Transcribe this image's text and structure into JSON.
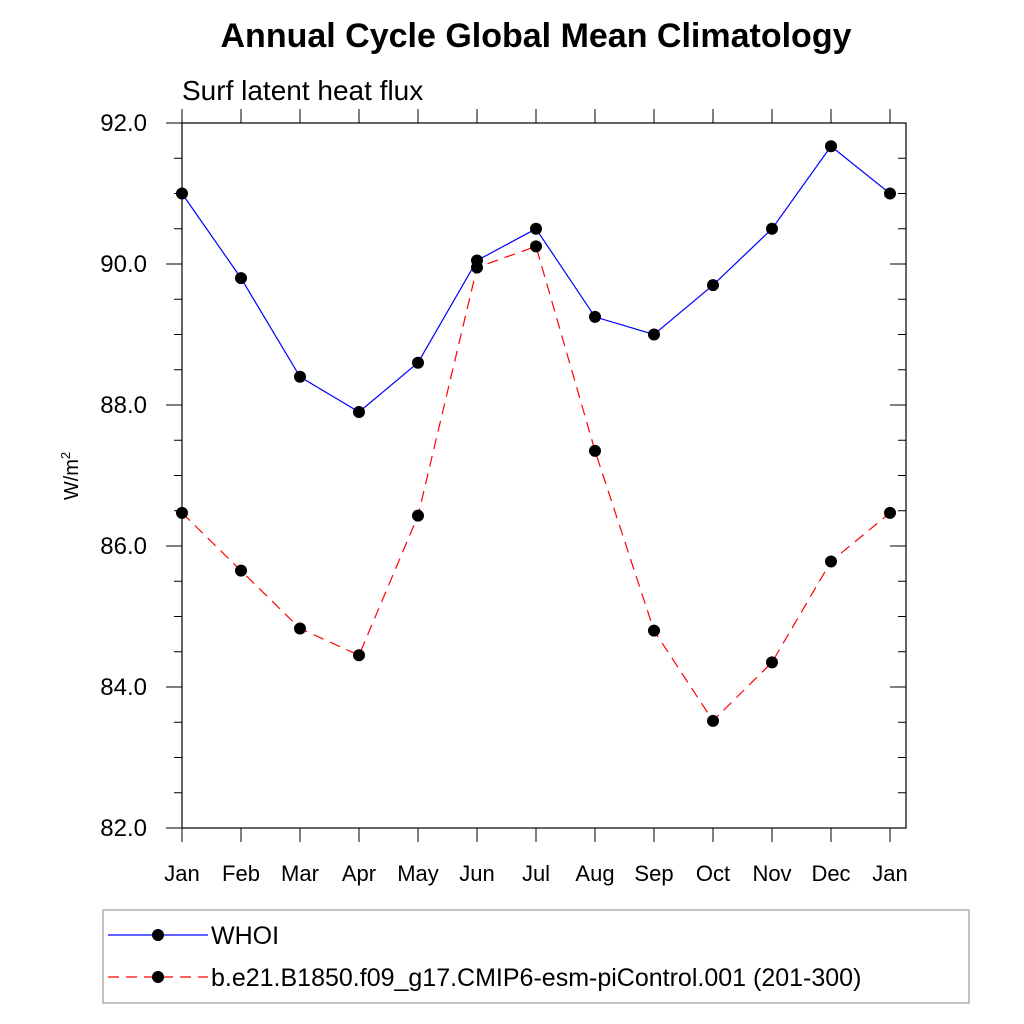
{
  "chart_data": {
    "type": "line",
    "title": "Annual Cycle Global Mean Climatology",
    "subtitle": "Surf latent heat flux",
    "xlabel": "",
    "ylabel_base": "W/m",
    "ylabel_sup": "2",
    "categories": [
      "Jan",
      "Feb",
      "Mar",
      "Apr",
      "May",
      "Jun",
      "Jul",
      "Aug",
      "Sep",
      "Oct",
      "Nov",
      "Dec",
      "Jan"
    ],
    "ylim": [
      82.0,
      92.0
    ],
    "yticks": [
      "82.0",
      "84.0",
      "86.0",
      "88.0",
      "90.0",
      "92.0"
    ],
    "grid": false,
    "legend_position": "bottom",
    "series": [
      {
        "name": "WHOI",
        "color": "#0000ff",
        "line_style": "solid",
        "marker": "filled-circle",
        "values": [
          91.0,
          89.8,
          88.4,
          87.9,
          88.6,
          90.05,
          90.5,
          89.25,
          89.0,
          89.7,
          90.5,
          91.67,
          91.0
        ]
      },
      {
        "name": "b.e21.B1850.f09_g17.CMIP6-esm-piControl.001 (201-300)",
        "color": "#ff0000",
        "line_style": "dashed",
        "marker": "filled-circle",
        "values": [
          86.47,
          85.65,
          84.83,
          84.45,
          86.43,
          89.95,
          90.25,
          87.35,
          84.8,
          83.52,
          84.35,
          85.78,
          86.47
        ]
      }
    ]
  }
}
